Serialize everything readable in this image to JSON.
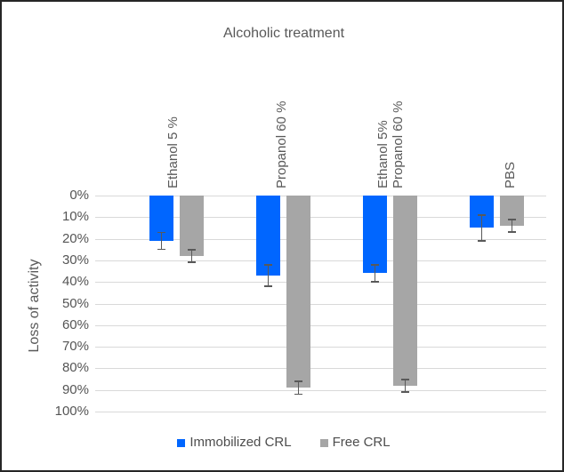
{
  "chart_data": {
    "type": "bar",
    "orientation": "vertical-downward",
    "title": "Alcoholic treatment",
    "xlabel": "",
    "ylabel": "Loss of activity",
    "ylim": [
      0,
      100
    ],
    "y_inverted": true,
    "grid": true,
    "legend_position": "bottom",
    "yticks": [
      "0%",
      "10%",
      "20%",
      "30%",
      "40%",
      "50%",
      "60%",
      "70%",
      "80%",
      "90%",
      "100%"
    ],
    "categories": [
      "Ethanol 5 %",
      "Propanol 60 %",
      "Ethanol 5%\nPropanol 60 %",
      "PBS"
    ],
    "series": [
      {
        "name": "Immobilized CRL",
        "color": "#0066ff",
        "values": [
          21,
          37,
          36,
          15
        ],
        "errors": [
          4,
          5,
          4,
          6
        ]
      },
      {
        "name": "Free CRL",
        "color": "#a6a6a6",
        "values": [
          28,
          89,
          88,
          14
        ],
        "errors": [
          3,
          3,
          3,
          3
        ]
      }
    ],
    "error_bar_color": "#595959",
    "gridline_color": "#d9d9d9"
  }
}
